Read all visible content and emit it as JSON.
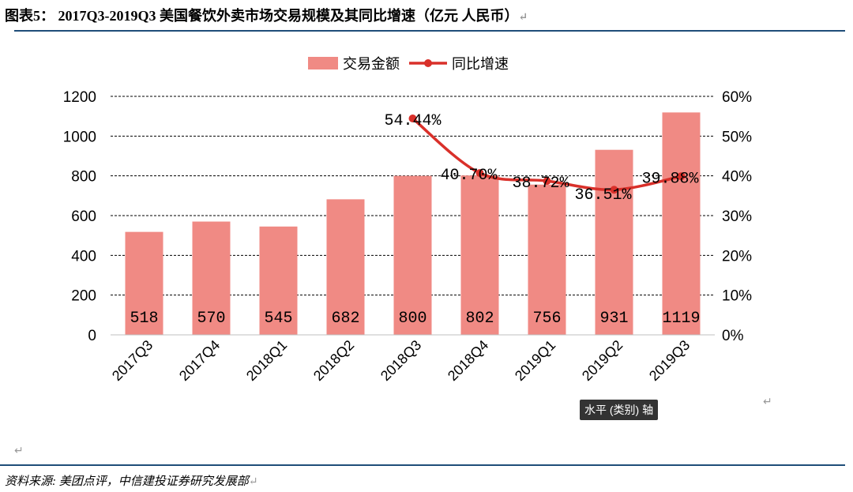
{
  "figure": {
    "title": "图表5： 2017Q3-2019Q3 美国餐饮外卖市场交易规模及其同比增速（亿元 人民币）",
    "source": "资料来源: 美团点评，中信建投证券研究发展部",
    "return_mark": "↵",
    "tooltip": "水平 (类别) 轴"
  },
  "colors": {
    "bar": "#f08a84",
    "line": "#d9302a",
    "grid": "#000000",
    "rule": "#1f4e79"
  },
  "chart_data": {
    "type": "bar",
    "categories": [
      "2017Q3",
      "2017Q4",
      "2018Q1",
      "2018Q2",
      "2018Q3",
      "2018Q4",
      "2019Q1",
      "2019Q2",
      "2019Q3"
    ],
    "series": [
      {
        "name": "交易金额",
        "type": "bar",
        "axis": "left",
        "values": [
          518,
          570,
          545,
          682,
          800,
          802,
          756,
          931,
          1119
        ],
        "labels": [
          "518",
          "570",
          "545",
          "682",
          "800",
          "802",
          "756",
          "931",
          "1119"
        ]
      },
      {
        "name": "同比增速",
        "type": "line",
        "axis": "right",
        "values": [
          null,
          null,
          null,
          null,
          54.44,
          40.7,
          38.72,
          36.51,
          39.88
        ],
        "labels": [
          "",
          "",
          "",
          "",
          "54.44%",
          "40.70%",
          "38.72%",
          "36.51%",
          "39.88%"
        ]
      }
    ],
    "y_left": {
      "min": 0,
      "max": 1200,
      "ticks": [
        "0",
        "200",
        "400",
        "600",
        "800",
        "1000",
        "1200"
      ]
    },
    "y_right": {
      "min": 0,
      "max": 60,
      "ticks": [
        "0%",
        "10%",
        "20%",
        "30%",
        "40%",
        "50%",
        "60%"
      ]
    },
    "grid": true,
    "legend": "top-center"
  }
}
